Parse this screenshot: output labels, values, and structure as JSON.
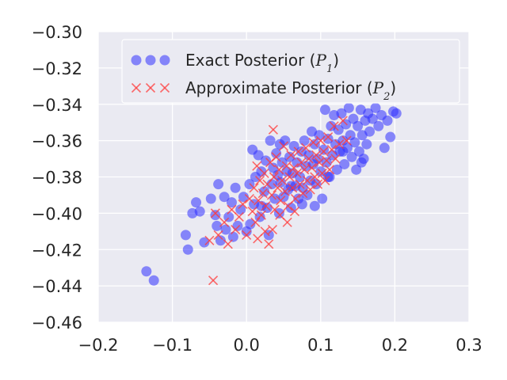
{
  "chart_data": {
    "type": "scatter",
    "xlim": [
      -0.2,
      0.3
    ],
    "ylim": [
      -0.46,
      -0.3
    ],
    "xticks": [
      "−0.2",
      "−0.1",
      "0.0",
      "0.1",
      "0.2",
      "0.3"
    ],
    "yticks": [
      "−0.30",
      "−0.32",
      "−0.34",
      "−0.36",
      "−0.38",
      "−0.40",
      "−0.42",
      "−0.44",
      "−0.46"
    ],
    "grid": true,
    "legend_position": "top",
    "series": [
      {
        "name": "Exact Posterior",
        "name_math": "P",
        "name_sub": "1",
        "marker": "circle",
        "color": "#2f2fff",
        "points": [
          [
            -0.135,
            -0.432
          ],
          [
            -0.125,
            -0.437
          ],
          [
            -0.082,
            -0.412
          ],
          [
            -0.079,
            -0.42
          ],
          [
            -0.073,
            -0.4
          ],
          [
            -0.068,
            -0.394
          ],
          [
            -0.063,
            -0.399
          ],
          [
            -0.057,
            -0.416
          ],
          [
            -0.048,
            -0.392
          ],
          [
            -0.042,
            -0.401
          ],
          [
            -0.04,
            -0.407
          ],
          [
            -0.038,
            -0.384
          ],
          [
            -0.035,
            -0.415
          ],
          [
            -0.03,
            -0.391
          ],
          [
            -0.028,
            -0.409
          ],
          [
            -0.024,
            -0.402
          ],
          [
            -0.02,
            -0.394
          ],
          [
            -0.018,
            -0.413
          ],
          [
            -0.015,
            -0.386
          ],
          [
            -0.012,
            -0.407
          ],
          [
            -0.008,
            -0.398
          ],
          [
            -0.004,
            -0.391
          ],
          [
            0.0,
            -0.41
          ],
          [
            0.004,
            -0.384
          ],
          [
            0.008,
            -0.365
          ],
          [
            0.01,
            -0.395
          ],
          [
            0.012,
            -0.38
          ],
          [
            0.016,
            -0.368
          ],
          [
            0.018,
            -0.402
          ],
          [
            0.02,
            -0.377
          ],
          [
            0.024,
            -0.388
          ],
          [
            0.026,
            -0.371
          ],
          [
            0.028,
            -0.397
          ],
          [
            0.03,
            -0.412
          ],
          [
            0.032,
            -0.36
          ],
          [
            0.034,
            -0.384
          ],
          [
            0.036,
            -0.375
          ],
          [
            0.038,
            -0.392
          ],
          [
            0.04,
            -0.367
          ],
          [
            0.042,
            -0.379
          ],
          [
            0.044,
            -0.4
          ],
          [
            0.046,
            -0.383
          ],
          [
            0.048,
            -0.372
          ],
          [
            0.05,
            -0.391
          ],
          [
            0.052,
            -0.36
          ],
          [
            0.054,
            -0.377
          ],
          [
            0.056,
            -0.387
          ],
          [
            0.058,
            -0.369
          ],
          [
            0.06,
            -0.397
          ],
          [
            0.062,
            -0.378
          ],
          [
            0.064,
            -0.363
          ],
          [
            0.066,
            -0.385
          ],
          [
            0.068,
            -0.372
          ],
          [
            0.07,
            -0.392
          ],
          [
            0.072,
            -0.38
          ],
          [
            0.074,
            -0.366
          ],
          [
            0.076,
            -0.386
          ],
          [
            0.078,
            -0.36
          ],
          [
            0.08,
            -0.374
          ],
          [
            0.082,
            -0.39
          ],
          [
            0.084,
            -0.368
          ],
          [
            0.086,
            -0.382
          ],
          [
            0.088,
            -0.355
          ],
          [
            0.09,
            -0.373
          ],
          [
            0.092,
            -0.362
          ],
          [
            0.094,
            -0.384
          ],
          [
            0.096,
            -0.37
          ],
          [
            0.098,
            -0.357
          ],
          [
            0.1,
            -0.377
          ],
          [
            0.102,
            -0.392
          ],
          [
            0.104,
            -0.365
          ],
          [
            0.106,
            -0.343
          ],
          [
            0.108,
            -0.372
          ],
          [
            0.11,
            -0.359
          ],
          [
            0.112,
            -0.38
          ],
          [
            0.114,
            -0.352
          ],
          [
            0.116,
            -0.368
          ],
          [
            0.118,
            -0.346
          ],
          [
            0.12,
            -0.362
          ],
          [
            0.122,
            -0.376
          ],
          [
            0.124,
            -0.354
          ],
          [
            0.126,
            -0.366
          ],
          [
            0.128,
            -0.345
          ],
          [
            0.13,
            -0.36
          ],
          [
            0.132,
            -0.373
          ],
          [
            0.134,
            -0.351
          ],
          [
            0.136,
            -0.364
          ],
          [
            0.138,
            -0.342
          ],
          [
            0.14,
            -0.357
          ],
          [
            0.142,
            -0.369
          ],
          [
            0.144,
            -0.348
          ],
          [
            0.146,
            -0.361
          ],
          [
            0.148,
            -0.376
          ],
          [
            0.15,
            -0.352
          ],
          [
            0.152,
            -0.366
          ],
          [
            0.154,
            -0.343
          ],
          [
            0.156,
            -0.357
          ],
          [
            0.158,
            -0.37
          ],
          [
            0.16,
            -0.349
          ],
          [
            0.162,
            -0.362
          ],
          [
            0.164,
            -0.345
          ],
          [
            0.166,
            -0.355
          ],
          [
            0.17,
            -0.348
          ],
          [
            0.174,
            -0.342
          ],
          [
            0.178,
            -0.352
          ],
          [
            0.182,
            -0.346
          ],
          [
            0.186,
            -0.364
          ],
          [
            0.19,
            -0.349
          ],
          [
            0.194,
            -0.358
          ],
          [
            0.198,
            -0.344
          ],
          [
            0.202,
            -0.345
          ],
          [
            0.092,
            -0.396
          ],
          [
            0.075,
            -0.395
          ],
          [
            0.06,
            -0.385
          ],
          [
            0.045,
            -0.362
          ],
          [
            0.02,
            -0.396
          ],
          [
            0.005,
            -0.406
          ],
          [
            0.11,
            -0.38
          ],
          [
            0.13,
            -0.366
          ],
          [
            0.155,
            -0.372
          ]
        ]
      },
      {
        "name": "Approximate Posterior",
        "name_math": "P",
        "name_sub": "2",
        "marker": "x",
        "color": "#ff3b3b",
        "points": [
          [
            -0.045,
            -0.437
          ],
          [
            -0.05,
            -0.415
          ],
          [
            -0.042,
            -0.4
          ],
          [
            -0.038,
            -0.412
          ],
          [
            -0.03,
            -0.405
          ],
          [
            -0.025,
            -0.417
          ],
          [
            -0.02,
            -0.398
          ],
          [
            -0.015,
            -0.409
          ],
          [
            -0.01,
            -0.402
          ],
          [
            -0.005,
            -0.395
          ],
          [
            0.0,
            -0.412
          ],
          [
            0.004,
            -0.392
          ],
          [
            0.008,
            -0.399
          ],
          [
            0.01,
            -0.386
          ],
          [
            0.012,
            -0.405
          ],
          [
            0.014,
            -0.374
          ],
          [
            0.016,
            -0.393
          ],
          [
            0.018,
            -0.382
          ],
          [
            0.02,
            -0.401
          ],
          [
            0.022,
            -0.389
          ],
          [
            0.024,
            -0.378
          ],
          [
            0.026,
            -0.396
          ],
          [
            0.028,
            -0.384
          ],
          [
            0.03,
            -0.417
          ],
          [
            0.032,
            -0.372
          ],
          [
            0.034,
            -0.39
          ],
          [
            0.036,
            -0.354
          ],
          [
            0.037,
            -0.38
          ],
          [
            0.038,
            -0.398
          ],
          [
            0.04,
            -0.369
          ],
          [
            0.042,
            -0.386
          ],
          [
            0.044,
            -0.376
          ],
          [
            0.046,
            -0.393
          ],
          [
            0.048,
            -0.382
          ],
          [
            0.05,
            -0.363
          ],
          [
            0.052,
            -0.388
          ],
          [
            0.054,
            -0.374
          ],
          [
            0.056,
            -0.396
          ],
          [
            0.058,
            -0.38
          ],
          [
            0.06,
            -0.368
          ],
          [
            0.062,
            -0.386
          ],
          [
            0.064,
            -0.375
          ],
          [
            0.066,
            -0.392
          ],
          [
            0.068,
            -0.378
          ],
          [
            0.07,
            -0.366
          ],
          [
            0.072,
            -0.384
          ],
          [
            0.074,
            -0.372
          ],
          [
            0.076,
            -0.389
          ],
          [
            0.078,
            -0.376
          ],
          [
            0.08,
            -0.364
          ],
          [
            0.082,
            -0.382
          ],
          [
            0.084,
            -0.37
          ],
          [
            0.086,
            -0.387
          ],
          [
            0.088,
            -0.375
          ],
          [
            0.09,
            -0.361
          ],
          [
            0.092,
            -0.38
          ],
          [
            0.094,
            -0.368
          ],
          [
            0.096,
            -0.384
          ],
          [
            0.098,
            -0.372
          ],
          [
            0.1,
            -0.36
          ],
          [
            0.102,
            -0.378
          ],
          [
            0.104,
            -0.366
          ],
          [
            0.106,
            -0.382
          ],
          [
            0.108,
            -0.371
          ],
          [
            0.11,
            -0.358
          ],
          [
            0.112,
            -0.376
          ],
          [
            0.115,
            -0.365
          ],
          [
            0.118,
            -0.352
          ],
          [
            0.12,
            -0.37
          ],
          [
            0.125,
            -0.362
          ],
          [
            0.13,
            -0.349
          ],
          [
            0.135,
            -0.36
          ],
          [
            0.045,
            -0.401
          ],
          [
            0.055,
            -0.405
          ],
          [
            0.035,
            -0.409
          ],
          [
            0.025,
            -0.41
          ],
          [
            0.065,
            -0.399
          ],
          [
            0.015,
            -0.414
          ]
        ]
      }
    ]
  }
}
